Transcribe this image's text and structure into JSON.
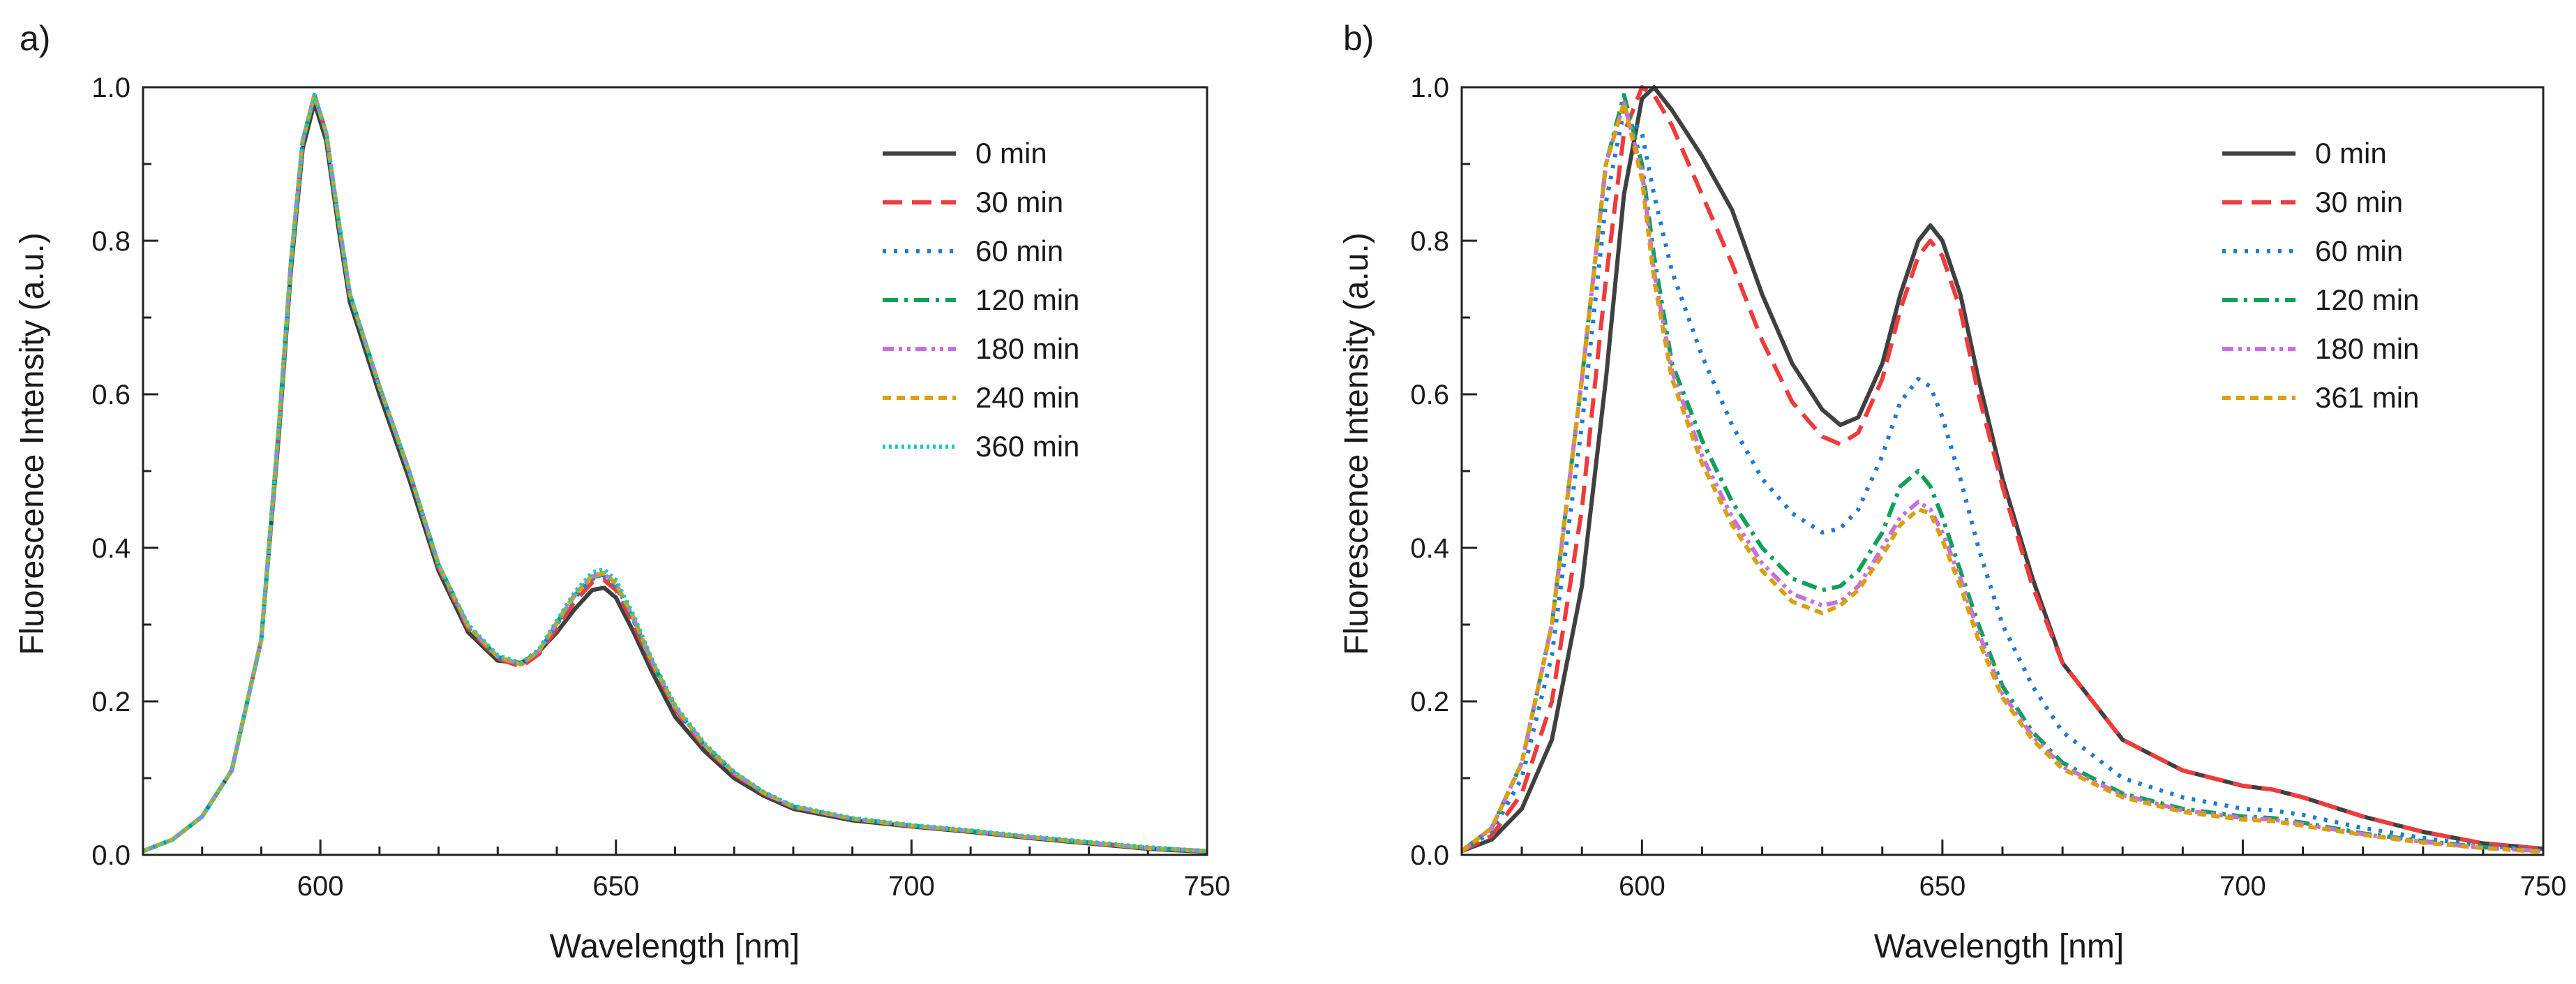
{
  "chart_data": [
    {
      "panel_label": "a)",
      "type": "line",
      "xlabel": "Wavelength [nm]",
      "ylabel": "Fluorescence Intensity (a.u.)",
      "xlim": [
        570,
        750
      ],
      "ylim": [
        0,
        1.0
      ],
      "xticks": [
        600,
        650,
        700,
        750
      ],
      "xtick_labels": [
        "600",
        "650",
        "700",
        "750"
      ],
      "yticks": [
        0,
        0.2,
        0.4,
        0.6,
        0.8,
        1.0
      ],
      "ytick_labels": [
        "0.0",
        "0.2",
        "0.4",
        "0.6",
        "0.8",
        "1.0"
      ],
      "legend_position": "top-right",
      "x": [
        570,
        575,
        580,
        585,
        590,
        593,
        595,
        597,
        599,
        601,
        603,
        605,
        610,
        615,
        620,
        625,
        630,
        634,
        637,
        640,
        643,
        646,
        648,
        650,
        653,
        656,
        660,
        665,
        670,
        675,
        680,
        690,
        700,
        710,
        720,
        730,
        740,
        750
      ],
      "series": [
        {
          "name": "0 min",
          "color": "#404040",
          "dash": "solid",
          "values": [
            0.005,
            0.02,
            0.05,
            0.11,
            0.28,
            0.55,
            0.76,
            0.92,
            0.98,
            0.93,
            0.82,
            0.72,
            0.6,
            0.49,
            0.37,
            0.29,
            0.253,
            0.25,
            0.265,
            0.29,
            0.32,
            0.345,
            0.348,
            0.335,
            0.29,
            0.24,
            0.18,
            0.135,
            0.1,
            0.077,
            0.06,
            0.045,
            0.037,
            0.03,
            0.022,
            0.015,
            0.008,
            0.004
          ]
        },
        {
          "name": "30 min",
          "color": "#ee3b3b",
          "dash": "long-dash",
          "values": [
            0.005,
            0.02,
            0.05,
            0.11,
            0.28,
            0.56,
            0.77,
            0.93,
            0.99,
            0.94,
            0.83,
            0.73,
            0.61,
            0.5,
            0.375,
            0.295,
            0.256,
            0.245,
            0.262,
            0.295,
            0.33,
            0.355,
            0.358,
            0.345,
            0.3,
            0.25,
            0.19,
            0.14,
            0.105,
            0.08,
            0.062,
            0.047,
            0.038,
            0.031,
            0.023,
            0.016,
            0.009,
            0.005
          ]
        },
        {
          "name": "60 min",
          "color": "#1f7ad6",
          "dash": "dotted",
          "values": [
            0.005,
            0.02,
            0.05,
            0.11,
            0.28,
            0.56,
            0.77,
            0.93,
            0.99,
            0.94,
            0.83,
            0.73,
            0.61,
            0.5,
            0.378,
            0.298,
            0.258,
            0.248,
            0.265,
            0.3,
            0.335,
            0.36,
            0.362,
            0.35,
            0.305,
            0.252,
            0.192,
            0.142,
            0.106,
            0.081,
            0.063,
            0.047,
            0.038,
            0.031,
            0.023,
            0.016,
            0.009,
            0.005
          ]
        },
        {
          "name": "120 min",
          "color": "#11a05a",
          "dash": "dash-dot",
          "values": [
            0.005,
            0.02,
            0.05,
            0.11,
            0.28,
            0.56,
            0.77,
            0.93,
            0.99,
            0.94,
            0.83,
            0.73,
            0.61,
            0.5,
            0.378,
            0.298,
            0.258,
            0.248,
            0.266,
            0.302,
            0.338,
            0.362,
            0.365,
            0.352,
            0.307,
            0.253,
            0.193,
            0.143,
            0.107,
            0.081,
            0.063,
            0.047,
            0.038,
            0.031,
            0.023,
            0.016,
            0.009,
            0.005
          ]
        },
        {
          "name": "180 min",
          "color": "#c76fe0",
          "dash": "dash-dot-dot",
          "values": [
            0.005,
            0.02,
            0.05,
            0.11,
            0.28,
            0.56,
            0.77,
            0.93,
            0.99,
            0.94,
            0.83,
            0.73,
            0.61,
            0.5,
            0.378,
            0.298,
            0.258,
            0.248,
            0.266,
            0.302,
            0.338,
            0.363,
            0.366,
            0.353,
            0.308,
            0.254,
            0.193,
            0.143,
            0.107,
            0.081,
            0.063,
            0.047,
            0.038,
            0.031,
            0.023,
            0.016,
            0.009,
            0.005
          ]
        },
        {
          "name": "240 min",
          "color": "#d9a011",
          "dash": "short-dash",
          "values": [
            0.005,
            0.02,
            0.05,
            0.11,
            0.28,
            0.56,
            0.77,
            0.93,
            0.99,
            0.94,
            0.83,
            0.73,
            0.61,
            0.5,
            0.378,
            0.298,
            0.258,
            0.248,
            0.266,
            0.303,
            0.339,
            0.364,
            0.367,
            0.354,
            0.309,
            0.254,
            0.193,
            0.143,
            0.107,
            0.081,
            0.063,
            0.047,
            0.038,
            0.031,
            0.023,
            0.016,
            0.009,
            0.005
          ]
        },
        {
          "name": "360 min",
          "color": "#1fc9c0",
          "dash": "dense-dot",
          "values": [
            0.005,
            0.02,
            0.05,
            0.11,
            0.28,
            0.56,
            0.77,
            0.93,
            0.99,
            0.94,
            0.83,
            0.73,
            0.61,
            0.5,
            0.378,
            0.3,
            0.26,
            0.25,
            0.268,
            0.305,
            0.342,
            0.368,
            0.372,
            0.358,
            0.312,
            0.256,
            0.195,
            0.145,
            0.108,
            0.082,
            0.064,
            0.048,
            0.039,
            0.032,
            0.024,
            0.017,
            0.01,
            0.005
          ]
        }
      ]
    },
    {
      "panel_label": "b)",
      "type": "line",
      "xlabel": "Wavelength [nm]",
      "ylabel": "Fluorescence Intensity (a.u.)",
      "xlim": [
        570,
        750
      ],
      "ylim": [
        0,
        1.0
      ],
      "xticks": [
        600,
        650,
        700,
        750
      ],
      "xtick_labels": [
        "600",
        "650",
        "700",
        "750"
      ],
      "yticks": [
        0,
        0.2,
        0.4,
        0.6,
        0.8,
        1.0
      ],
      "ytick_labels": [
        "0.0",
        "0.2",
        "0.4",
        "0.6",
        "0.8",
        "1.0"
      ],
      "legend_position": "top-right",
      "x": [
        570,
        575,
        580,
        585,
        590,
        594,
        597,
        600,
        602,
        605,
        610,
        615,
        620,
        625,
        630,
        633,
        636,
        640,
        643,
        646,
        648,
        650,
        653,
        656,
        660,
        665,
        670,
        680,
        690,
        700,
        705,
        710,
        720,
        730,
        740,
        750
      ],
      "series": [
        {
          "name": "0 min",
          "color": "#404040",
          "dash": "solid",
          "values": [
            0.005,
            0.02,
            0.06,
            0.15,
            0.35,
            0.62,
            0.86,
            0.985,
            1.0,
            0.97,
            0.91,
            0.84,
            0.73,
            0.64,
            0.58,
            0.56,
            0.57,
            0.64,
            0.73,
            0.8,
            0.82,
            0.8,
            0.73,
            0.62,
            0.49,
            0.36,
            0.25,
            0.15,
            0.11,
            0.09,
            0.085,
            0.075,
            0.05,
            0.03,
            0.015,
            0.008
          ]
        },
        {
          "name": "30 min",
          "color": "#ee3b3b",
          "dash": "long-dash",
          "values": [
            0.005,
            0.025,
            0.08,
            0.2,
            0.45,
            0.75,
            0.94,
            1.0,
            0.99,
            0.95,
            0.86,
            0.77,
            0.67,
            0.59,
            0.545,
            0.535,
            0.55,
            0.62,
            0.71,
            0.78,
            0.8,
            0.78,
            0.71,
            0.6,
            0.48,
            0.35,
            0.25,
            0.15,
            0.11,
            0.09,
            0.085,
            0.075,
            0.05,
            0.03,
            0.015,
            0.008
          ]
        },
        {
          "name": "60 min",
          "color": "#1f7ad6",
          "dash": "dotted",
          "values": [
            0.005,
            0.03,
            0.1,
            0.26,
            0.56,
            0.85,
            0.97,
            0.94,
            0.86,
            0.76,
            0.65,
            0.56,
            0.49,
            0.445,
            0.42,
            0.425,
            0.45,
            0.52,
            0.59,
            0.62,
            0.61,
            0.57,
            0.49,
            0.4,
            0.3,
            0.22,
            0.16,
            0.1,
            0.075,
            0.06,
            0.058,
            0.052,
            0.035,
            0.022,
            0.012,
            0.006
          ]
        },
        {
          "name": "120 min",
          "color": "#11a05a",
          "dash": "dash-dot",
          "values": [
            0.005,
            0.035,
            0.12,
            0.3,
            0.62,
            0.9,
            0.99,
            0.9,
            0.78,
            0.64,
            0.54,
            0.46,
            0.4,
            0.36,
            0.345,
            0.35,
            0.37,
            0.42,
            0.48,
            0.5,
            0.48,
            0.44,
            0.37,
            0.3,
            0.22,
            0.16,
            0.12,
            0.08,
            0.06,
            0.05,
            0.048,
            0.042,
            0.028,
            0.018,
            0.01,
            0.005
          ]
        },
        {
          "name": "180 min",
          "color": "#c76fe0",
          "dash": "dash-dot-dot",
          "values": [
            0.005,
            0.035,
            0.12,
            0.3,
            0.62,
            0.9,
            0.98,
            0.89,
            0.76,
            0.63,
            0.52,
            0.44,
            0.38,
            0.34,
            0.325,
            0.33,
            0.35,
            0.4,
            0.44,
            0.46,
            0.45,
            0.42,
            0.36,
            0.29,
            0.21,
            0.155,
            0.115,
            0.078,
            0.058,
            0.048,
            0.046,
            0.04,
            0.027,
            0.017,
            0.009,
            0.005
          ]
        },
        {
          "name": "361 min",
          "color": "#d9a011",
          "dash": "short-dash",
          "values": [
            0.005,
            0.035,
            0.12,
            0.3,
            0.62,
            0.9,
            0.98,
            0.88,
            0.75,
            0.62,
            0.51,
            0.43,
            0.37,
            0.33,
            0.315,
            0.325,
            0.345,
            0.39,
            0.43,
            0.45,
            0.445,
            0.41,
            0.35,
            0.28,
            0.205,
            0.15,
            0.112,
            0.075,
            0.056,
            0.046,
            0.044,
            0.038,
            0.026,
            0.016,
            0.009,
            0.004
          ]
        }
      ]
    }
  ]
}
